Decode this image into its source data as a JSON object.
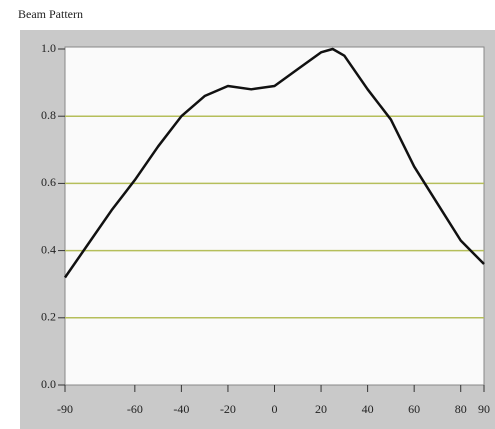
{
  "chart_data": {
    "type": "line",
    "title": "Beam Pattern",
    "series": [
      {
        "color": "#111111",
        "x": [
          -90,
          -80,
          -70,
          -60,
          -50,
          -40,
          -30,
          -20,
          -10,
          0,
          10,
          20,
          25,
          30,
          40,
          50,
          60,
          70,
          80,
          90
        ],
        "values": [
          0.32,
          0.42,
          0.52,
          0.61,
          0.71,
          0.8,
          0.86,
          0.89,
          0.88,
          0.89,
          0.94,
          0.99,
          1.0,
          0.98,
          0.88,
          0.79,
          0.65,
          0.54,
          0.43,
          0.36
        ]
      }
    ],
    "xlim": [
      -90,
      90
    ],
    "xticks": [
      -90,
      -60,
      -40,
      -20,
      0,
      20,
      40,
      60,
      80,
      90
    ],
    "ylim": [
      0,
      1
    ],
    "yticks": [
      {
        "value": 0,
        "label": "0.0"
      },
      0.2,
      0.4,
      0.6,
      0.8,
      {
        "value": 1,
        "label": "1.0"
      }
    ],
    "grid": true,
    "grid_color": "#b5be5a"
  }
}
